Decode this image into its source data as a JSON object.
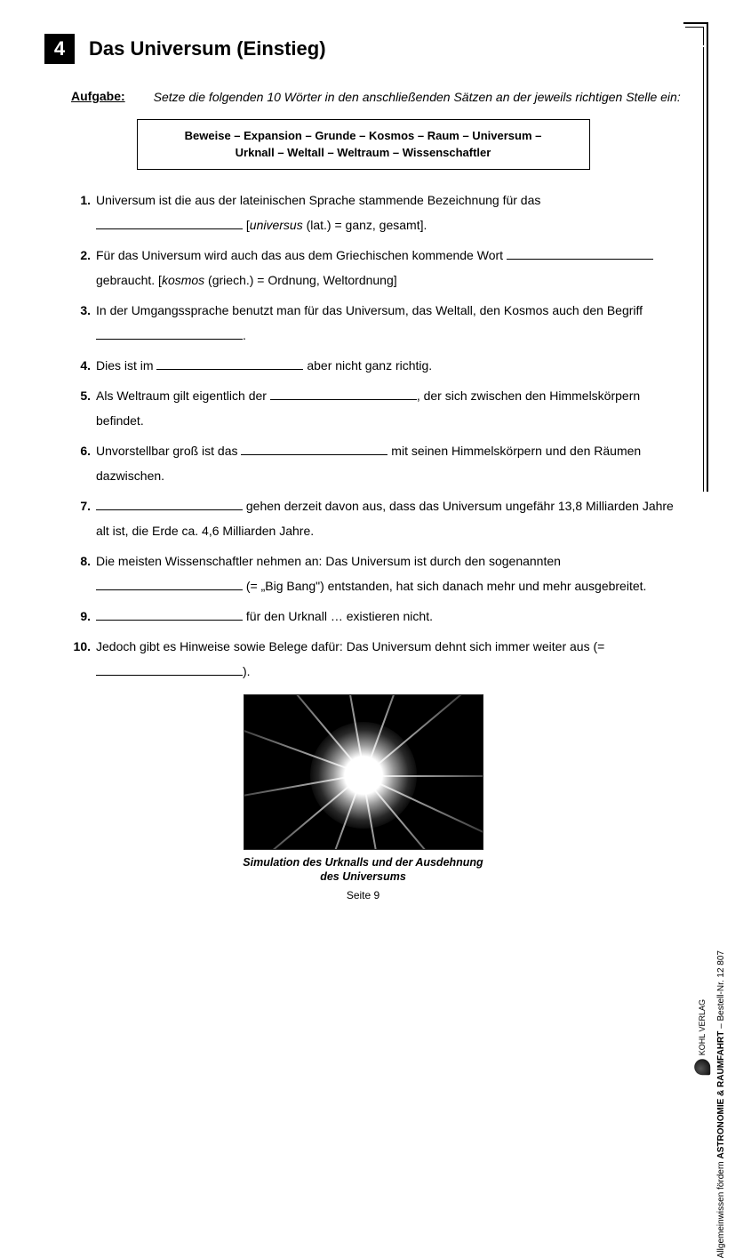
{
  "chapter_number": "4",
  "title": "Das Universum (Einstieg)",
  "task_label": "Aufgabe:",
  "task_text": "Setze die folgenden 10 Wörter in den anschließenden Sätzen an der jeweils richtigen Stelle ein:",
  "word_box_line1": "Beweise – Expansion – Grunde – Kosmos – Raum – Universum –",
  "word_box_line2": "Urknall – Weltall – Weltraum – Wissenschaftler",
  "items": [
    {
      "n": "1.",
      "pre": "Universum ist die aus der lateinischen Sprache stammende Bezeichnung für das ",
      "post_html": " [<i>universus</i> (lat.) = ganz, gesamt]."
    },
    {
      "n": "2.",
      "pre": "Für das Universum wird auch das aus dem Griechischen kommende Wort ",
      "post_html": " gebraucht. [<i>kosmos</i> (griech.) = Ordnung, Weltordnung]"
    },
    {
      "n": "3.",
      "pre": "In der Umgangssprache benutzt man für das Universum, das Weltall, den Kosmos auch den Begriff ",
      "post_html": "."
    },
    {
      "n": "4.",
      "pre": "Dies ist im ",
      "post_html": " aber nicht ganz richtig."
    },
    {
      "n": "5.",
      "pre": "Als Weltraum gilt eigentlich der ",
      "post_html": ", der sich zwischen den Himmelskörpern befindet."
    },
    {
      "n": "6.",
      "pre": "Unvorstellbar groß ist das ",
      "post_html": " mit seinen Himmelskörpern und den Räumen dazwischen."
    },
    {
      "n": "7.",
      "pre": "",
      "post_html": " gehen derzeit davon aus, dass das Universum ungefähr 13,8 Milliarden Jahre alt ist, die Erde ca. 4,6 Milliarden Jahre."
    },
    {
      "n": "8.",
      "pre": "Die meisten Wissenschaftler nehmen an: Das Universum ist durch den sogenannten ",
      "post_html": " (= „Big Bang\") entstanden, hat sich danach mehr und mehr ausgebreitet."
    },
    {
      "n": "9.",
      "pre": "",
      "post_html": " für den Urknall … existieren nicht."
    },
    {
      "n": "10.",
      "pre": "Jedoch gibt es Hinweise sowie Belege dafür: Das Universum dehnt sich immer weiter aus  (= ",
      "post_html": ")."
    }
  ],
  "caption_line1": "Simulation des Urknalls und der Ausdehnung",
  "caption_line2": "des Universums",
  "page_number": "Seite 9",
  "side_text_plain": "Allgemeinwissen fördern ",
  "side_text_bold": "ASTRONOMIE & RAUMFAHRT",
  "side_text_order": "    –    Bestell-Nr. 12 807",
  "publisher": "KOHL VERLAG",
  "ray_angles": [
    0,
    25,
    50,
    80,
    110,
    140,
    170,
    200,
    230,
    260,
    290,
    320
  ],
  "colors": {
    "bg": "#ffffff",
    "text": "#000000"
  }
}
